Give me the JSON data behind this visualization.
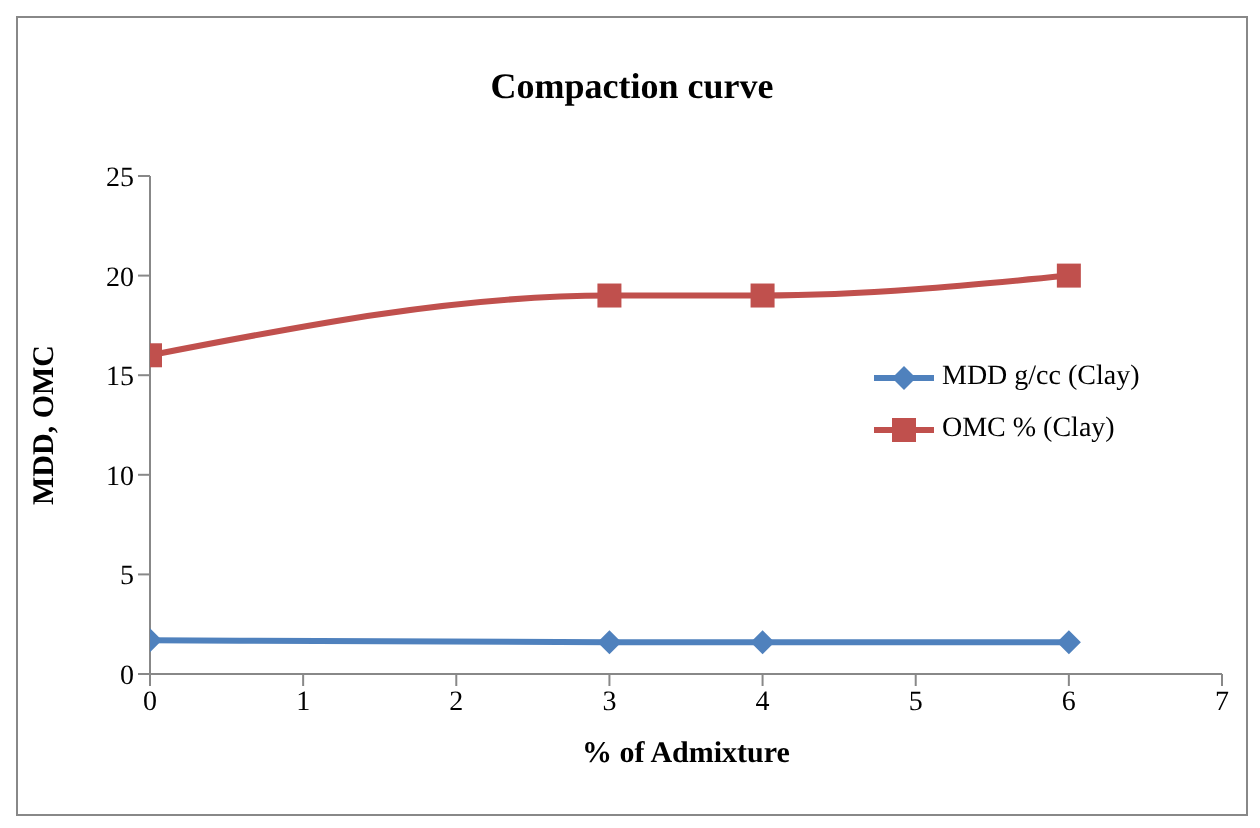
{
  "chart_data": {
    "type": "line",
    "title": "Compaction curve",
    "xlabel": "% of Admixture",
    "ylabel": "MDD, OMC",
    "x": [
      0,
      3,
      4,
      6
    ],
    "series": [
      {
        "name": "MDD g/cc (Clay)",
        "color": "#4f81bd",
        "values": [
          1.7,
          1.6,
          1.6,
          1.6
        ],
        "marker": "diamond"
      },
      {
        "name": "OMC % (Clay)",
        "color": "#c0504d",
        "values": [
          16,
          19,
          19,
          20
        ],
        "marker": "square"
      }
    ],
    "xlim": [
      0,
      7
    ],
    "xticks": [
      0,
      1,
      2,
      3,
      4,
      5,
      6,
      7
    ],
    "ylim": [
      0,
      25
    ],
    "yticks": [
      0,
      5,
      10,
      15,
      20,
      25
    ],
    "grid": false,
    "legend": "right",
    "line_style": "solid"
  }
}
